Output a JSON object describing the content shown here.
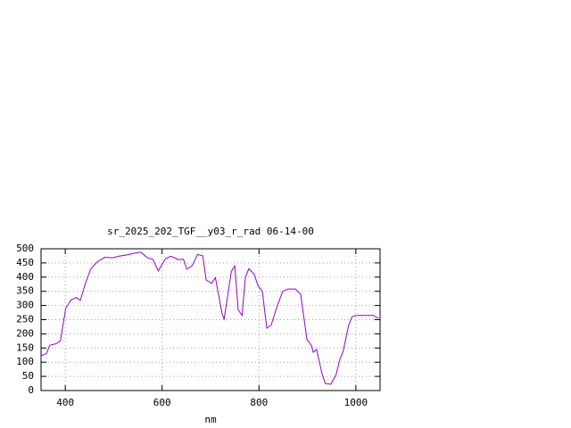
{
  "chart_data": {
    "type": "line",
    "title": "sr_2025_202_TGF__y03_r_rad 06-14-00",
    "x_label": "nm",
    "x": [
      350,
      361,
      368,
      381,
      390,
      401,
      412,
      423,
      431,
      442,
      453,
      467,
      482,
      497,
      511,
      526,
      541,
      556,
      570,
      581,
      592,
      607,
      618,
      633,
      644,
      651,
      662,
      673,
      684,
      691,
      702,
      710,
      724,
      728,
      743,
      750,
      757,
      765,
      772,
      779,
      790,
      798,
      807,
      816,
      825,
      838,
      849,
      860,
      875,
      886,
      899,
      908,
      912,
      919,
      930,
      937,
      948,
      959,
      967,
      974,
      985,
      992,
      1000,
      1018,
      1036,
      1047
    ],
    "values": [
      123,
      130,
      160,
      165,
      175,
      290,
      320,
      328,
      318,
      380,
      430,
      455,
      470,
      468,
      474,
      478,
      484,
      488,
      468,
      462,
      422,
      465,
      474,
      462,
      463,
      428,
      440,
      480,
      475,
      390,
      378,
      398,
      270,
      252,
      420,
      440,
      285,
      265,
      400,
      430,
      410,
      370,
      350,
      220,
      230,
      300,
      350,
      358,
      358,
      340,
      180,
      160,
      135,
      145,
      60,
      25,
      22,
      55,
      110,
      140,
      230,
      260,
      265,
      265,
      265,
      255
    ],
    "color": "#9400d3",
    "xlim": [
      350,
      1050
    ],
    "xticks": [
      400,
      600,
      800,
      1000
    ],
    "ylim": [
      0,
      500
    ],
    "yticks": [
      0,
      50,
      100,
      150,
      200,
      250,
      300,
      350,
      400,
      450,
      500
    ],
    "grid": true
  }
}
